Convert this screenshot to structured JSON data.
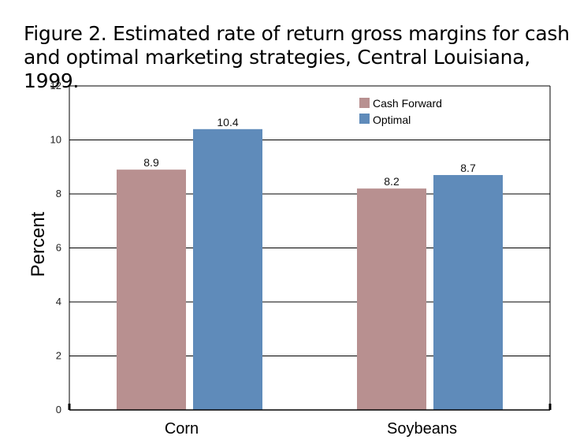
{
  "chart_data": {
    "type": "bar",
    "title": "Figure 2. Estimated rate of return gross margins for cash and optimal marketing strategies, Central Louisiana, 1999.",
    "categories": [
      "Corn",
      "Soybeans"
    ],
    "series": [
      {
        "name": "Cash Forward",
        "values": [
          8.9,
          8.2
        ],
        "color": "#b89090"
      },
      {
        "name": "Optimal",
        "values": [
          10.4,
          8.7
        ],
        "color": "#5f8bba"
      }
    ],
    "xlabel": "",
    "ylabel": "Percent",
    "ylim": [
      0,
      12
    ],
    "yticks": [
      0,
      2,
      4,
      6,
      8,
      10,
      12
    ],
    "grid": true,
    "legend": "top-right",
    "data_labels": [
      [
        "8.9",
        "8.2"
      ],
      [
        "10.4",
        "8.7"
      ]
    ]
  }
}
